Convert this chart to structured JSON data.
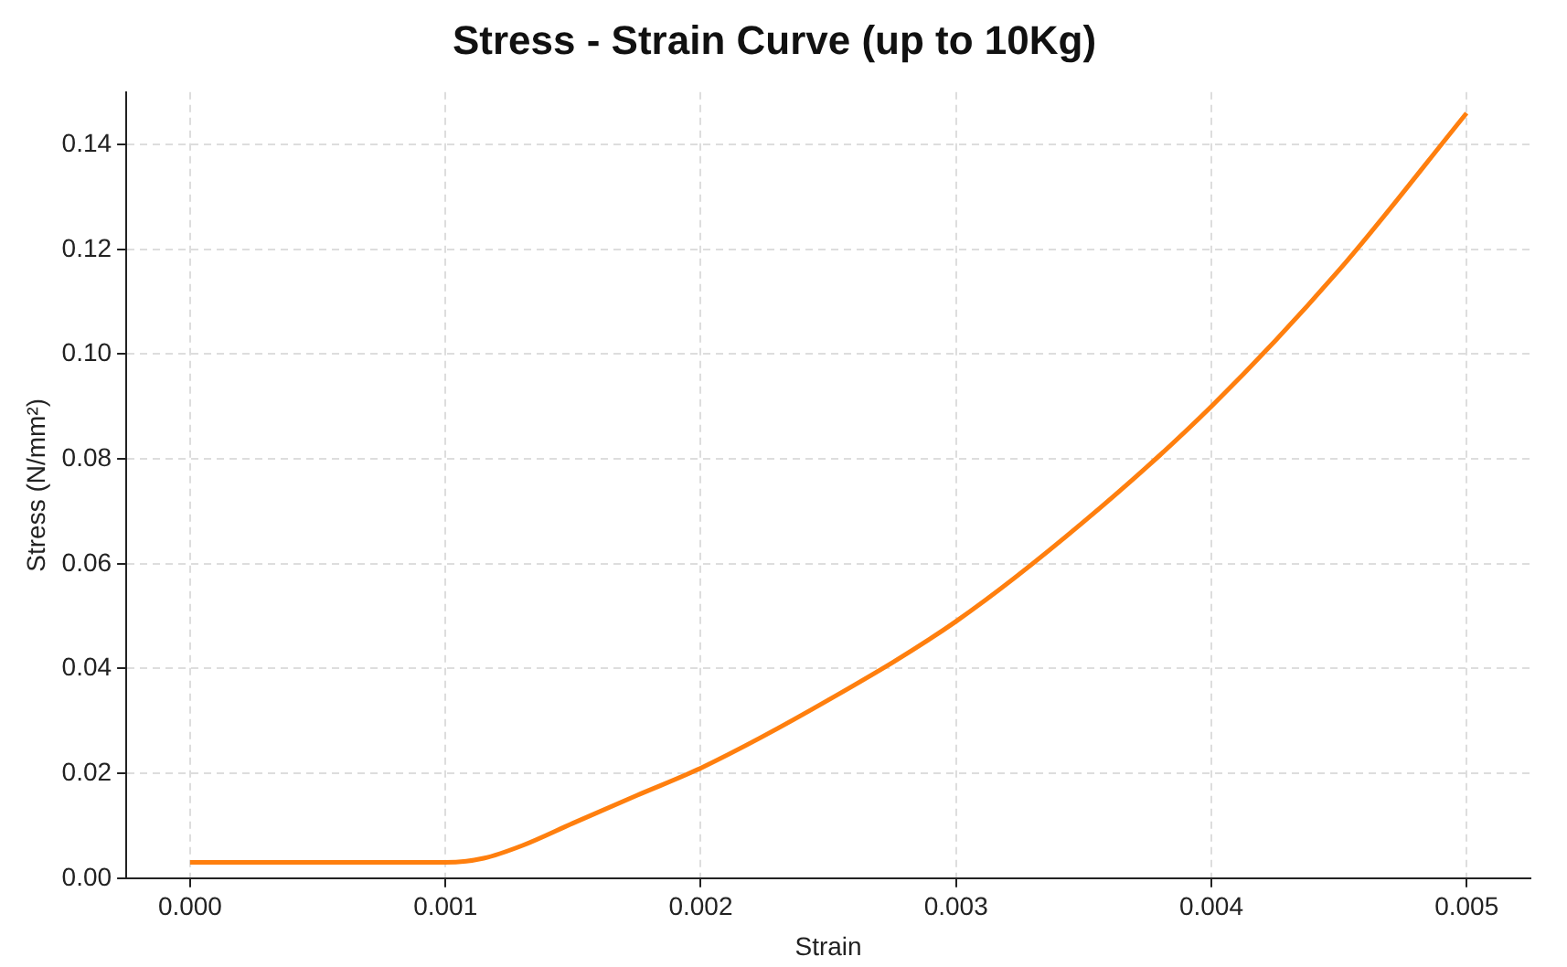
{
  "chart_data": {
    "type": "line",
    "title": "Stress - Strain Curve (up to 10Kg)",
    "xlabel": "Strain",
    "ylabel": "Stress (N/mm²)",
    "xlim": [
      -0.00025,
      0.00525
    ],
    "ylim": [
      0,
      0.15
    ],
    "xticks": [
      {
        "value": 0,
        "label": "0.000"
      },
      {
        "value": 0.001,
        "label": "0.001"
      },
      {
        "value": 0.002,
        "label": "0.002"
      },
      {
        "value": 0.003,
        "label": "0.003"
      },
      {
        "value": 0.004,
        "label": "0.004"
      },
      {
        "value": 0.005,
        "label": "0.005"
      }
    ],
    "yticks": [
      {
        "value": 0,
        "label": "0.00"
      },
      {
        "value": 0.02,
        "label": "0.02"
      },
      {
        "value": 0.04,
        "label": "0.04"
      },
      {
        "value": 0.06,
        "label": "0.06"
      },
      {
        "value": 0.08,
        "label": "0.08"
      },
      {
        "value": 0.1,
        "label": "0.10"
      },
      {
        "value": 0.12,
        "label": "0.12"
      },
      {
        "value": 0.14,
        "label": "0.14"
      }
    ],
    "grid": true,
    "marker": "none",
    "line_style": "solid",
    "x": [
      0,
      0.0005,
      0.001,
      0.00115,
      0.0013,
      0.0015,
      0.00175,
      0.002,
      0.0025,
      0.003,
      0.0035,
      0.004,
      0.0045,
      0.005
    ],
    "series": [
      {
        "color": "#ff7f0e",
        "values": [
          0.003,
          0.003,
          0.003,
          0.0038,
          0.0062,
          0.0105,
          0.0158,
          0.021,
          0.034,
          0.049,
          0.068,
          0.09,
          0.116,
          0.146
        ]
      }
    ]
  }
}
